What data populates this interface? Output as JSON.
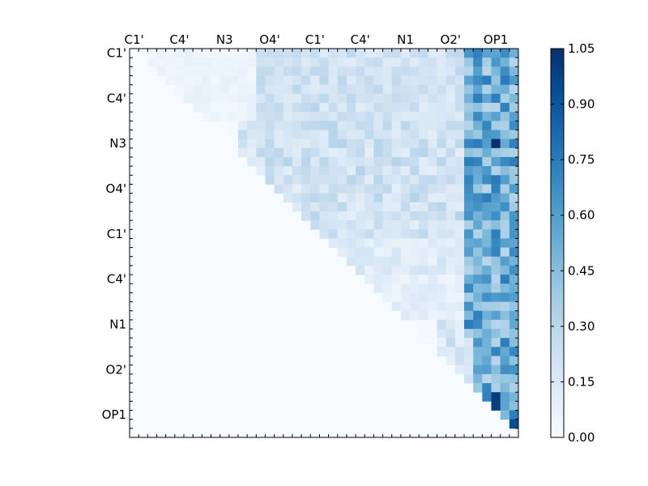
{
  "chart_data": {
    "type": "heatmap",
    "title": "",
    "xlabel": "",
    "ylabel": "",
    "colormap": "Blues",
    "x_tick_labels": [
      "C1'",
      "C4'",
      "N3",
      "O4'",
      "C1'",
      "C4'",
      "N1",
      "O2'",
      "OP1"
    ],
    "y_tick_labels": [
      "C1'",
      "C4'",
      "N3",
      "O4'",
      "C1'",
      "C4'",
      "N1",
      "O2'",
      "OP1"
    ],
    "matrix_size": [
      43,
      43
    ],
    "layout": "upper-triangular (values above the diagonal, near zero below)",
    "colorbar": {
      "range": [
        0.0,
        1.05
      ],
      "ticks": [
        "0.00",
        "0.15",
        "0.30",
        "0.45",
        "0.60",
        "0.75",
        "0.90",
        "1.05"
      ]
    },
    "value_regions": [
      {
        "region": "rows 1-8, cols 15-37",
        "approx_value": 0.2
      },
      {
        "region": "rows 9-22, cols 13-37",
        "approx_value": 0.2
      },
      {
        "region": "rows 23-30, cols 22-37",
        "approx_value": 0.12
      },
      {
        "region": "rows 31-43, cols 35-38",
        "approx_value": 0.15
      },
      {
        "region": "cols 38-42, rows 1-42",
        "approx_value": 0.6
      },
      {
        "region": "peak, row 11 col 41",
        "approx_value": 1.05
      },
      {
        "region": "peak, row 39 col 41",
        "approx_value": 1.0
      }
    ]
  }
}
